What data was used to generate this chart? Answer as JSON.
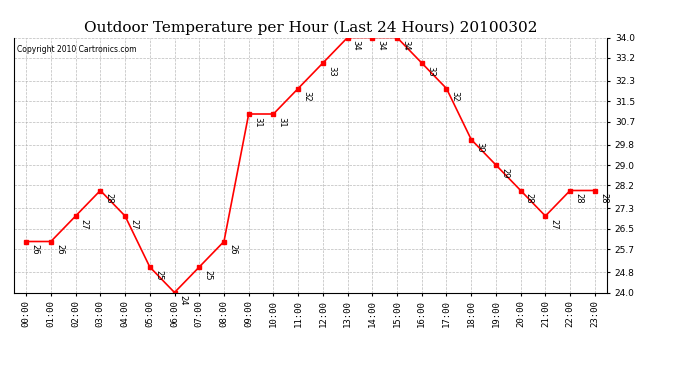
{
  "title": "Outdoor Temperature per Hour (Last 24 Hours) 20100302",
  "copyright": "Copyright 2010 Cartronics.com",
  "hours": [
    "00:00",
    "01:00",
    "02:00",
    "03:00",
    "04:00",
    "05:00",
    "06:00",
    "07:00",
    "08:00",
    "09:00",
    "10:00",
    "11:00",
    "12:00",
    "13:00",
    "14:00",
    "15:00",
    "16:00",
    "17:00",
    "18:00",
    "19:00",
    "20:00",
    "21:00",
    "22:00",
    "23:00"
  ],
  "temps": [
    26,
    26,
    27,
    28,
    27,
    25,
    24,
    25,
    26,
    31,
    31,
    32,
    33,
    34,
    34,
    34,
    33,
    32,
    30,
    29,
    28,
    27,
    28,
    28
  ],
  "ylim": [
    24.0,
    34.0
  ],
  "yticks": [
    24.0,
    24.8,
    25.7,
    26.5,
    27.3,
    28.2,
    29.0,
    29.8,
    30.7,
    31.5,
    32.3,
    33.2,
    34.0
  ],
  "line_color": "red",
  "marker": "s",
  "marker_size": 3,
  "bg_color": "white",
  "grid_color": "#aaaaaa",
  "title_fontsize": 11,
  "label_fontsize": 6.5,
  "annot_fontsize": 6,
  "copyright_fontsize": 5.5
}
